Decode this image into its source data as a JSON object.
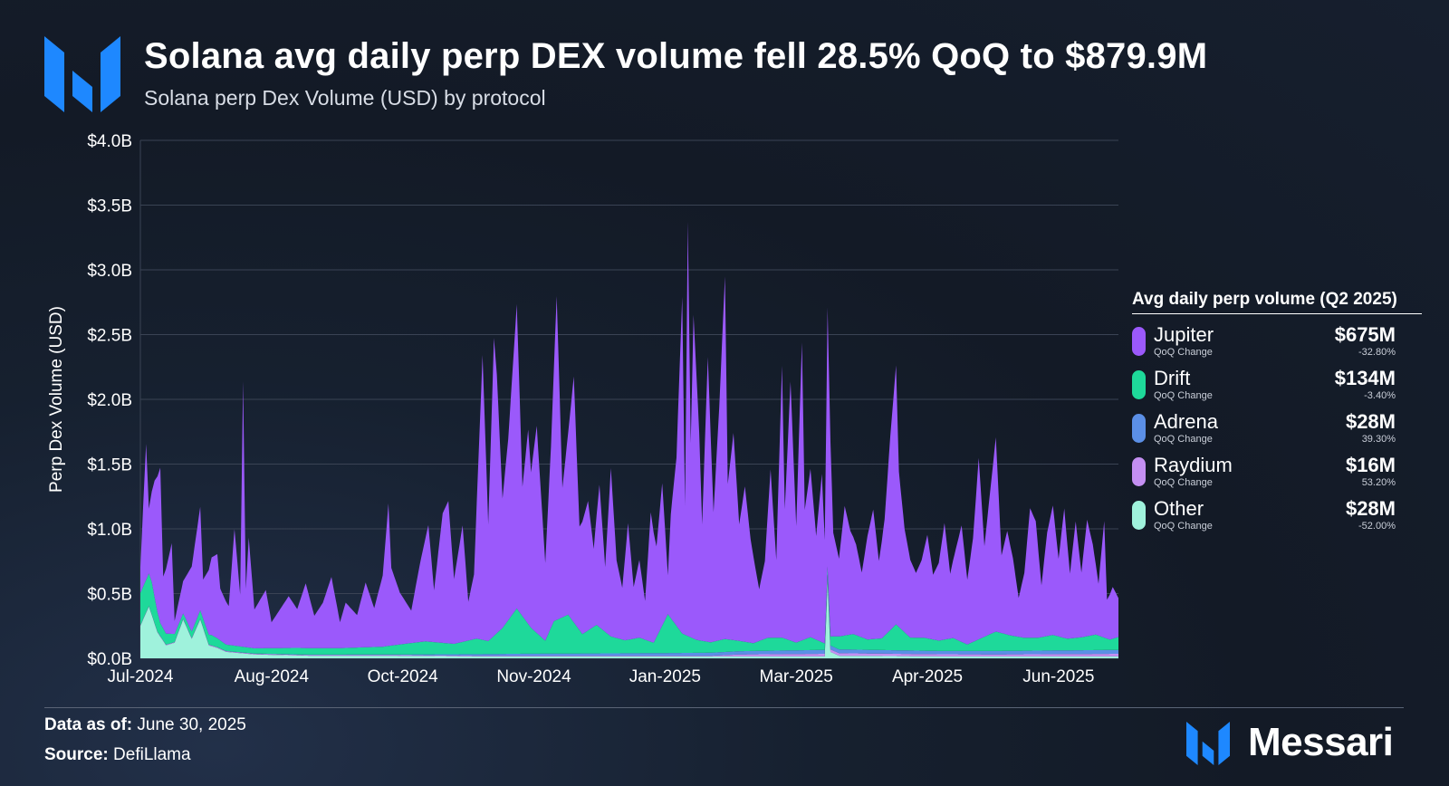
{
  "header": {
    "title": "Solana avg daily perp DEX volume fell 28.5% QoQ to $879.9M",
    "subtitle": "Solana perp Dex Volume (USD) by protocol",
    "logo_icon": "messari-m-icon"
  },
  "legend": {
    "title": "Avg daily perp volume (Q2 2025)",
    "sub_label": "QoQ Change",
    "items": [
      {
        "name": "Jupiter",
        "value": "$675M",
        "change": "-32.80%",
        "color": "#9b59fb"
      },
      {
        "name": "Drift",
        "value": "$134M",
        "change": "-3.40%",
        "color": "#1ed99a"
      },
      {
        "name": "Adrena",
        "value": "$28M",
        "change": "39.30%",
        "color": "#5b8fe6"
      },
      {
        "name": "Raydium",
        "value": "$16M",
        "change": "53.20%",
        "color": "#c48ff2"
      },
      {
        "name": "Other",
        "value": "$28M",
        "change": "-52.00%",
        "color": "#9ff2dc"
      }
    ]
  },
  "footer": {
    "data_as_of_label": "Data as of:",
    "data_as_of_value": "June 30, 2025",
    "source_label": "Source:",
    "source_value": "DefiLlama",
    "brand": "Messari"
  },
  "chart_data": {
    "type": "area",
    "stacked": true,
    "title": "Solana avg daily perp DEX volume fell 28.5% QoQ to $879.9M",
    "subtitle": "Solana perp Dex Volume (USD) by protocol",
    "xlabel": "",
    "ylabel": "Perp Dex Volume (USD)",
    "ylim": [
      0,
      4.0
    ],
    "y_unit": "billion USD",
    "y_ticks": [
      "$0.0B",
      "$0.5B",
      "$1.0B",
      "$1.5B",
      "$2.0B",
      "$2.5B",
      "$3.0B",
      "$3.5B",
      "$4.0B"
    ],
    "x_ticks": [
      "Jul-2024",
      "Aug-2024",
      "Oct-2024",
      "Nov-2024",
      "Jan-2025",
      "Mar-2025",
      "Apr-2025",
      "Jun-2025"
    ],
    "x_tick_days": [
      0,
      46,
      92,
      138,
      184,
      230,
      276,
      322
    ],
    "x_range_days": [
      0,
      343
    ],
    "grid": true,
    "stack_order": [
      "Other",
      "Raydium",
      "Adrena",
      "Drift",
      "Jupiter"
    ],
    "series": [
      {
        "name": "Other",
        "color": "#9ff2dc",
        "points": [
          [
            0,
            0.25
          ],
          [
            3,
            0.4
          ],
          [
            6,
            0.2
          ],
          [
            9,
            0.1
          ],
          [
            12,
            0.12
          ],
          [
            15,
            0.3
          ],
          [
            18,
            0.15
          ],
          [
            21,
            0.3
          ],
          [
            24,
            0.1
          ],
          [
            27,
            0.08
          ],
          [
            30,
            0.05
          ],
          [
            40,
            0.03
          ],
          [
            60,
            0.02
          ],
          [
            90,
            0.02
          ],
          [
            120,
            0.015
          ],
          [
            150,
            0.015
          ],
          [
            180,
            0.015
          ],
          [
            230,
            0.015
          ],
          [
            240,
            0.015
          ],
          [
            241,
            0.6
          ],
          [
            242,
            0.05
          ],
          [
            245,
            0.02
          ],
          [
            280,
            0.015
          ],
          [
            343,
            0.015
          ]
        ]
      },
      {
        "name": "Raydium",
        "color": "#c48ff2",
        "points": [
          [
            0,
            0.005
          ],
          [
            200,
            0.005
          ],
          [
            210,
            0.015
          ],
          [
            240,
            0.02
          ],
          [
            300,
            0.015
          ],
          [
            343,
            0.02
          ]
        ]
      },
      {
        "name": "Adrena",
        "color": "#5b8fe6",
        "points": [
          [
            0,
            0.0
          ],
          [
            90,
            0.005
          ],
          [
            130,
            0.015
          ],
          [
            180,
            0.02
          ],
          [
            210,
            0.025
          ],
          [
            240,
            0.03
          ],
          [
            280,
            0.025
          ],
          [
            343,
            0.03
          ]
        ]
      },
      {
        "name": "Drift",
        "color": "#1ed99a",
        "points": [
          [
            0,
            0.25
          ],
          [
            4,
            0.25
          ],
          [
            7,
            0.1
          ],
          [
            15,
            0.04
          ],
          [
            20,
            0.06
          ],
          [
            25,
            0.08
          ],
          [
            30,
            0.05
          ],
          [
            40,
            0.04
          ],
          [
            55,
            0.05
          ],
          [
            70,
            0.05
          ],
          [
            85,
            0.06
          ],
          [
            92,
            0.08
          ],
          [
            100,
            0.1
          ],
          [
            110,
            0.08
          ],
          [
            118,
            0.12
          ],
          [
            122,
            0.1
          ],
          [
            127,
            0.2
          ],
          [
            132,
            0.35
          ],
          [
            137,
            0.2
          ],
          [
            142,
            0.1
          ],
          [
            145,
            0.25
          ],
          [
            150,
            0.3
          ],
          [
            155,
            0.15
          ],
          [
            160,
            0.22
          ],
          [
            165,
            0.13
          ],
          [
            170,
            0.1
          ],
          [
            175,
            0.12
          ],
          [
            180,
            0.08
          ],
          [
            185,
            0.3
          ],
          [
            190,
            0.15
          ],
          [
            195,
            0.1
          ],
          [
            200,
            0.08
          ],
          [
            205,
            0.1
          ],
          [
            210,
            0.08
          ],
          [
            215,
            0.06
          ],
          [
            220,
            0.1
          ],
          [
            225,
            0.1
          ],
          [
            230,
            0.06
          ],
          [
            235,
            0.1
          ],
          [
            240,
            0.05
          ],
          [
            245,
            0.1
          ],
          [
            250,
            0.12
          ],
          [
            255,
            0.08
          ],
          [
            260,
            0.09
          ],
          [
            265,
            0.2
          ],
          [
            270,
            0.1
          ],
          [
            275,
            0.1
          ],
          [
            280,
            0.08
          ],
          [
            285,
            0.1
          ],
          [
            290,
            0.05
          ],
          [
            295,
            0.1
          ],
          [
            300,
            0.15
          ],
          [
            305,
            0.12
          ],
          [
            310,
            0.1
          ],
          [
            315,
            0.1
          ],
          [
            320,
            0.12
          ],
          [
            325,
            0.09
          ],
          [
            330,
            0.1
          ],
          [
            335,
            0.12
          ],
          [
            340,
            0.08
          ],
          [
            343,
            0.1
          ]
        ]
      },
      {
        "name": "Jupiter",
        "color": "#9b59fb",
        "points": [
          [
            0,
            0.2
          ],
          [
            2,
            1.05
          ],
          [
            3,
            0.5
          ],
          [
            5,
            0.9
          ],
          [
            7,
            1.2
          ],
          [
            8,
            0.4
          ],
          [
            11,
            0.7
          ],
          [
            12,
            0.1
          ],
          [
            15,
            0.25
          ],
          [
            18,
            0.5
          ],
          [
            21,
            0.8
          ],
          [
            22,
            0.3
          ],
          [
            25,
            0.6
          ],
          [
            27,
            0.65
          ],
          [
            28,
            0.4
          ],
          [
            31,
            0.3
          ],
          [
            33,
            0.9
          ],
          [
            35,
            0.4
          ],
          [
            36,
            2.05
          ],
          [
            37,
            0.45
          ],
          [
            38,
            0.85
          ],
          [
            40,
            0.3
          ],
          [
            44,
            0.45
          ],
          [
            46,
            0.2
          ],
          [
            49,
            0.3
          ],
          [
            52,
            0.4
          ],
          [
            55,
            0.3
          ],
          [
            58,
            0.5
          ],
          [
            61,
            0.25
          ],
          [
            64,
            0.35
          ],
          [
            67,
            0.55
          ],
          [
            70,
            0.2
          ],
          [
            72,
            0.35
          ],
          [
            76,
            0.25
          ],
          [
            79,
            0.5
          ],
          [
            82,
            0.3
          ],
          [
            85,
            0.55
          ],
          [
            87,
            1.1
          ],
          [
            88,
            0.6
          ],
          [
            91,
            0.4
          ],
          [
            95,
            0.25
          ],
          [
            98,
            0.6
          ],
          [
            101,
            0.9
          ],
          [
            103,
            0.4
          ],
          [
            106,
            1.0
          ],
          [
            108,
            1.1
          ],
          [
            110,
            0.5
          ],
          [
            113,
            0.9
          ],
          [
            115,
            0.3
          ],
          [
            117,
            0.5
          ],
          [
            120,
            2.2
          ],
          [
            122,
            0.9
          ],
          [
            124,
            2.3
          ],
          [
            125,
            2.0
          ],
          [
            127,
            1.0
          ],
          [
            129,
            1.4
          ],
          [
            132,
            2.35
          ],
          [
            134,
            1.0
          ],
          [
            136,
            1.5
          ],
          [
            137,
            1.2
          ],
          [
            139,
            1.6
          ],
          [
            142,
            0.6
          ],
          [
            144,
            1.4
          ],
          [
            146,
            2.5
          ],
          [
            148,
            1.0
          ],
          [
            150,
            1.4
          ],
          [
            152,
            1.9
          ],
          [
            154,
            0.8
          ],
          [
            157,
            1.0
          ],
          [
            159,
            0.6
          ],
          [
            161,
            1.1
          ],
          [
            163,
            0.5
          ],
          [
            165,
            1.3
          ],
          [
            167,
            0.6
          ],
          [
            169,
            0.4
          ],
          [
            171,
            0.9
          ],
          [
            173,
            0.4
          ],
          [
            175,
            0.6
          ],
          [
            177,
            0.3
          ],
          [
            179,
            1.0
          ],
          [
            181,
            0.7
          ],
          [
            183,
            1.1
          ],
          [
            185,
            0.3
          ],
          [
            186,
            0.8
          ],
          [
            188,
            1.3
          ],
          [
            190,
            2.6
          ],
          [
            191,
            1.0
          ],
          [
            192,
            3.2
          ],
          [
            193,
            1.5
          ],
          [
            194,
            2.5
          ],
          [
            196,
            1.6
          ],
          [
            197,
            0.9
          ],
          [
            199,
            2.2
          ],
          [
            201,
            1.0
          ],
          [
            203,
            1.8
          ],
          [
            205,
            2.8
          ],
          [
            206,
            1.2
          ],
          [
            208,
            1.6
          ],
          [
            210,
            0.9
          ],
          [
            212,
            1.2
          ],
          [
            214,
            0.8
          ],
          [
            217,
            0.4
          ],
          [
            219,
            0.6
          ],
          [
            221,
            1.3
          ],
          [
            223,
            0.6
          ],
          [
            225,
            2.1
          ],
          [
            226,
            1.0
          ],
          [
            228,
            2.0
          ],
          [
            230,
            0.9
          ],
          [
            232,
            2.3
          ],
          [
            233,
            1.0
          ],
          [
            235,
            1.3
          ],
          [
            237,
            0.8
          ],
          [
            239,
            1.3
          ],
          [
            240,
            0.8
          ],
          [
            241,
            2.0
          ],
          [
            242,
            1.5
          ],
          [
            243,
            0.8
          ],
          [
            245,
            0.6
          ],
          [
            247,
            1.0
          ],
          [
            249,
            0.8
          ],
          [
            251,
            0.7
          ],
          [
            253,
            0.5
          ],
          [
            255,
            0.8
          ],
          [
            257,
            1.0
          ],
          [
            259,
            0.6
          ],
          [
            261,
            0.9
          ],
          [
            263,
            1.5
          ],
          [
            265,
            2.0
          ],
          [
            266,
            1.2
          ],
          [
            268,
            0.8
          ],
          [
            270,
            0.6
          ],
          [
            272,
            0.5
          ],
          [
            274,
            0.6
          ],
          [
            276,
            0.8
          ],
          [
            278,
            0.5
          ],
          [
            280,
            0.6
          ],
          [
            282,
            0.9
          ],
          [
            284,
            0.5
          ],
          [
            286,
            0.7
          ],
          [
            288,
            0.9
          ],
          [
            290,
            0.5
          ],
          [
            292,
            0.8
          ],
          [
            294,
            1.4
          ],
          [
            296,
            0.7
          ],
          [
            298,
            1.1
          ],
          [
            300,
            1.5
          ],
          [
            302,
            0.6
          ],
          [
            304,
            0.8
          ],
          [
            306,
            0.6
          ],
          [
            308,
            0.3
          ],
          [
            310,
            0.5
          ],
          [
            312,
            1.0
          ],
          [
            314,
            0.9
          ],
          [
            316,
            0.4
          ],
          [
            318,
            0.8
          ],
          [
            320,
            1.0
          ],
          [
            322,
            0.6
          ],
          [
            324,
            1.0
          ],
          [
            326,
            0.5
          ],
          [
            328,
            0.9
          ],
          [
            330,
            0.5
          ],
          [
            332,
            0.9
          ],
          [
            334,
            0.7
          ],
          [
            336,
            0.4
          ],
          [
            338,
            0.9
          ],
          [
            339,
            0.3
          ],
          [
            341,
            0.4
          ],
          [
            343,
            0.3
          ]
        ]
      }
    ]
  }
}
